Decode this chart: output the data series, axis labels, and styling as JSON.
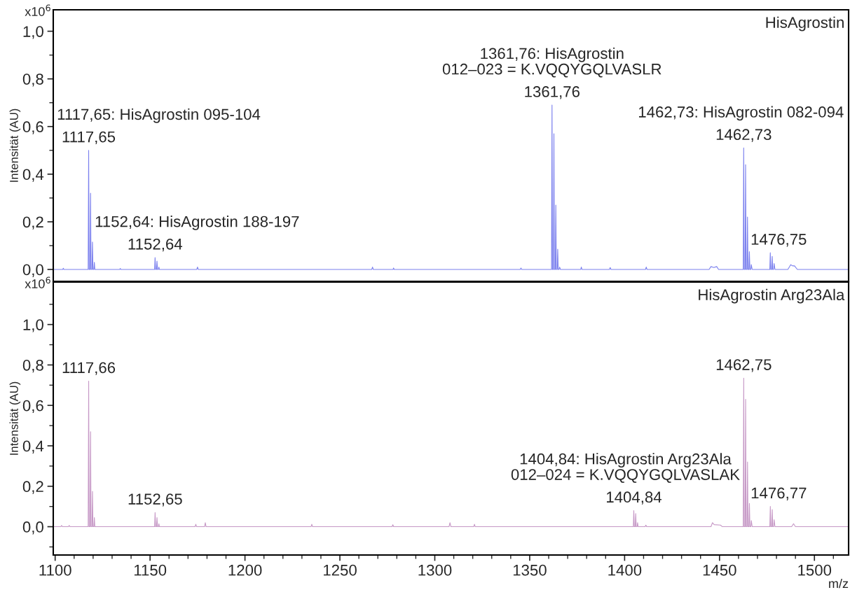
{
  "chart_data": [
    {
      "type": "line",
      "title": "HisAgrostin",
      "ylabel": "Intensität (AU)",
      "xlim": [
        1099,
        1518
      ],
      "ylim": [
        -0.05,
        1.09
      ],
      "tick_labels": "y",
      "grid": false,
      "marker": "none",
      "line_style": "solid",
      "yticks": [
        {
          "value": 0,
          "label": "0,0"
        },
        {
          "value": 0.1,
          "label": null
        },
        {
          "value": 0.2,
          "label": "0,2"
        },
        {
          "value": 0.3,
          "label": null
        },
        {
          "value": 0.4,
          "label": "0,4"
        },
        {
          "value": 0.5,
          "label": null
        },
        {
          "value": 0.6,
          "label": "0,6"
        },
        {
          "value": 0.7,
          "label": null
        },
        {
          "value": 0.8,
          "label": "0,8"
        },
        {
          "value": 0.9,
          "label": null
        },
        {
          "value": 1.0,
          "label": "1,0"
        }
      ],
      "series": [
        {
          "color": "#7b80ee",
          "x": [
            1099,
            1104,
            1104.3,
            1104.6,
            1117.4,
            1117.65,
            1117.9,
            1118.4,
            1118.65,
            1118.9,
            1119.4,
            1119.65,
            1119.9,
            1120.4,
            1120.65,
            1120.9,
            1134,
            1134.3,
            1134.6,
            1152.4,
            1152.64,
            1152.9,
            1153.4,
            1153.64,
            1153.9,
            1154.4,
            1154.64,
            1154.9,
            1174.6,
            1175,
            1175.4,
            1266.8,
            1267.2,
            1267.6,
            1278,
            1278.3,
            1278.6,
            1345,
            1345.4,
            1345.8,
            1361.5,
            1361.76,
            1362.0,
            1362.5,
            1362.76,
            1363.0,
            1363.5,
            1363.76,
            1364.0,
            1364.5,
            1364.76,
            1365.0,
            1365.5,
            1365.76,
            1366.2,
            1376.9,
            1377.2,
            1377.5,
            1392,
            1392.4,
            1392.8,
            1411,
            1411.4,
            1411.8,
            1444.5,
            1445.5,
            1447,
            1448.5,
            1449.5,
            1462.5,
            1462.73,
            1463.0,
            1463.5,
            1463.73,
            1464.0,
            1464.5,
            1464.73,
            1465.0,
            1465.5,
            1465.73,
            1466.0,
            1466.5,
            1466.73,
            1467.2,
            1476.5,
            1476.75,
            1477.0,
            1477.5,
            1477.75,
            1478.0,
            1478.5,
            1478.75,
            1479.2,
            1486,
            1487.5,
            1488.5,
            1489.5,
            1491,
            1518
          ],
          "values": [
            0,
            0,
            0.005,
            0,
            0,
            0.5,
            0,
            0,
            0.32,
            0,
            0,
            0.115,
            0,
            0,
            0.03,
            0,
            0,
            0.004,
            0,
            0,
            0.05,
            0,
            0,
            0.035,
            0,
            0,
            0.01,
            0,
            0,
            0.01,
            0,
            0,
            0.01,
            0,
            0,
            0.006,
            0,
            0,
            0.006,
            0,
            0,
            0.69,
            0,
            0,
            0.57,
            0,
            0,
            0.27,
            0,
            0,
            0.085,
            0,
            0,
            0.01,
            0,
            0,
            0.01,
            0,
            0,
            0.008,
            0,
            0,
            0.01,
            0,
            0,
            0.012,
            0.008,
            0.012,
            0,
            0,
            0.51,
            0,
            0,
            0.44,
            0,
            0,
            0.22,
            0,
            0,
            0.075,
            0,
            0,
            0.02,
            0,
            0,
            0.07,
            0,
            0,
            0.055,
            0,
            0,
            0.025,
            0,
            0,
            0.02,
            0.015,
            0.015,
            0,
            0
          ]
        }
      ],
      "annotations": [
        "x10$^{6}$",
        {
          "text": "1117,65",
          "x": 1117.65,
          "y": 0.5
        },
        {
          "text": "1117,65: HisAgrostin 095-104",
          "x": 1117.65,
          "y": 0.5
        },
        {
          "text": "1152,64",
          "x": 1152.64,
          "y": 0.05
        },
        {
          "text": "1152,64: HisAgrostin 188-197",
          "x": 1152.64,
          "y": 0.05
        },
        {
          "text": "1361,76",
          "x": 1361.76,
          "y": 0.69
        },
        {
          "text": "1361,76: HisAgrostin\n012–023 = K.VQQYGQLVASLR",
          "x": 1361.76,
          "y": 0.69
        },
        {
          "text": "1462,73",
          "x": 1462.73,
          "y": 0.51
        },
        {
          "text": "1462,73: HisAgrostin 082-094",
          "x": 1462.73,
          "y": 0.51
        },
        {
          "text": "1476,75",
          "x": 1476.75,
          "y": 0.07
        }
      ]
    },
    {
      "type": "line",
      "title": "HisAgrostin Arg23Ala",
      "ylabel": "Intensität (AU)",
      "xlabel": "m/z",
      "xlim": [
        1099,
        1518
      ],
      "ylim": [
        -0.14,
        1.21
      ],
      "grid": false,
      "marker": "none",
      "line_style": "solid",
      "xticks": [
        1100,
        {
          "value": 1110,
          "label": null
        },
        {
          "value": 1120,
          "label": null
        },
        {
          "value": 1130,
          "label": null
        },
        {
          "value": 1140,
          "label": null
        },
        1150,
        {
          "value": 1160,
          "label": null
        },
        {
          "value": 1170,
          "label": null
        },
        {
          "value": 1180,
          "label": null
        },
        {
          "value": 1190,
          "label": null
        },
        1200,
        {
          "value": 1210,
          "label": null
        },
        {
          "value": 1220,
          "label": null
        },
        {
          "value": 1230,
          "label": null
        },
        {
          "value": 1240,
          "label": null
        },
        1250,
        {
          "value": 1260,
          "label": null
        },
        {
          "value": 1270,
          "label": null
        },
        {
          "value": 1280,
          "label": null
        },
        {
          "value": 1290,
          "label": null
        },
        1300,
        {
          "value": 1310,
          "label": null
        },
        {
          "value": 1320,
          "label": null
        },
        {
          "value": 1330,
          "label": null
        },
        {
          "value": 1340,
          "label": null
        },
        1350,
        {
          "value": 1360,
          "label": null
        },
        {
          "value": 1370,
          "label": null
        },
        {
          "value": 1380,
          "label": null
        },
        {
          "value": 1390,
          "label": null
        },
        1400,
        {
          "value": 1410,
          "label": null
        },
        {
          "value": 1420,
          "label": null
        },
        {
          "value": 1430,
          "label": null
        },
        {
          "value": 1440,
          "label": null
        },
        1450,
        {
          "value": 1460,
          "label": null
        },
        {
          "value": 1470,
          "label": null
        },
        {
          "value": 1480,
          "label": null
        },
        {
          "value": 1490,
          "label": null
        },
        1500,
        {
          "value": 1510,
          "label": null
        }
      ],
      "yticks": [
        {
          "value": -0.1,
          "label": null
        },
        {
          "value": 0,
          "label": "0,0"
        },
        {
          "value": 0.1,
          "label": null
        },
        {
          "value": 0.2,
          "label": "0,2"
        },
        {
          "value": 0.3,
          "label": null
        },
        {
          "value": 0.4,
          "label": "0,4"
        },
        {
          "value": 0.5,
          "label": null
        },
        {
          "value": 0.6,
          "label": "0,6"
        },
        {
          "value": 0.7,
          "label": null
        },
        {
          "value": 0.8,
          "label": "0,8"
        },
        {
          "value": 0.9,
          "label": null
        },
        {
          "value": 1.0,
          "label": "1,0"
        },
        {
          "value": 1.1,
          "label": null
        }
      ],
      "series": [
        {
          "color": "#c698c6",
          "x": [
            1099,
            1103,
            1103.4,
            1103.8,
            1107,
            1107.4,
            1107.8,
            1117.4,
            1117.66,
            1117.9,
            1118.4,
            1118.66,
            1118.9,
            1119.4,
            1119.66,
            1119.9,
            1120.4,
            1120.66,
            1120.9,
            1152.4,
            1152.65,
            1152.9,
            1153.4,
            1153.65,
            1153.9,
            1154.4,
            1154.65,
            1154.9,
            1173.7,
            1174.1,
            1174.5,
            1178.7,
            1179.1,
            1179.5,
            1234.8,
            1235.2,
            1235.6,
            1277.5,
            1277.9,
            1278.3,
            1307.5,
            1308,
            1308.5,
            1320.5,
            1320.9,
            1321.3,
            1404.6,
            1404.84,
            1405.1,
            1405.6,
            1405.84,
            1406.1,
            1406.6,
            1406.84,
            1407.1,
            1410.8,
            1411.2,
            1411.6,
            1445.5,
            1446.3,
            1447.2,
            1450.5,
            1451.5,
            1462.5,
            1462.75,
            1463.0,
            1463.5,
            1463.75,
            1464.0,
            1464.5,
            1464.75,
            1465.0,
            1465.5,
            1465.75,
            1466.0,
            1466.5,
            1466.75,
            1467.2,
            1476.5,
            1476.77,
            1477.0,
            1477.5,
            1477.77,
            1478.0,
            1478.5,
            1478.77,
            1479.2,
            1488,
            1489,
            1490,
            1518
          ],
          "values": [
            0,
            0,
            0.006,
            0,
            0,
            0.006,
            0,
            0,
            0.72,
            0,
            0,
            0.47,
            0,
            0,
            0.175,
            0,
            0,
            0.045,
            0,
            0,
            0.07,
            0,
            0,
            0.045,
            0,
            0,
            0.015,
            0,
            0,
            0.012,
            0,
            0,
            0.02,
            0,
            0,
            0.012,
            0,
            0,
            0.01,
            0,
            0,
            0.02,
            0,
            0,
            0.012,
            0,
            0,
            0.08,
            0,
            0,
            0.065,
            0,
            0,
            0.02,
            0,
            0,
            0.008,
            0,
            0,
            0.02,
            0.01,
            0.008,
            0,
            0,
            0.735,
            0,
            0,
            0.63,
            0,
            0,
            0.32,
            0,
            0,
            0.115,
            0,
            0,
            0.03,
            0,
            0,
            0.1,
            0,
            0,
            0.085,
            0,
            0,
            0.035,
            0,
            0,
            0.015,
            0,
            0
          ]
        }
      ],
      "annotations": [
        "x10$^{6}$",
        {
          "text": "1117,66",
          "x": 1117.66,
          "y": 0.72
        },
        {
          "text": "1152,65",
          "x": 1152.65,
          "y": 0.07
        },
        {
          "text": "1404,84",
          "x": 1404.84,
          "y": 0.08
        },
        {
          "text": "1404,84: HisAgrostin Arg23Ala\n012–024 = K.VQQYGQLVASLAK",
          "x": 1404.84,
          "y": 0.08
        },
        {
          "text": "1462,75",
          "x": 1462.75,
          "y": 0.735
        },
        {
          "text": "1476,77",
          "x": 1476.77,
          "y": 0.1
        }
      ]
    }
  ]
}
